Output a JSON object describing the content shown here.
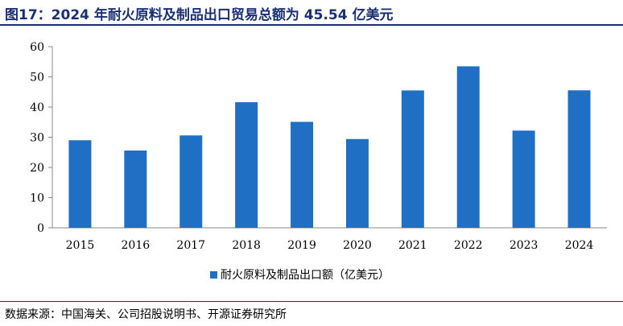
{
  "title": "图17：2024 年耐火原料及制品出口贸易总额为 45.54 亿美元",
  "source": "数据来源：中国海关、公司招股说明书、开源证券研究所",
  "colors": {
    "bar": "#1f6fc5",
    "title": "#1b2f73",
    "axis": "#888888"
  },
  "chart_data": {
    "type": "bar",
    "title": "",
    "xlabel": "",
    "ylabel": "",
    "categories": [
      "2015",
      "2016",
      "2017",
      "2018",
      "2019",
      "2020",
      "2021",
      "2022",
      "2023",
      "2024"
    ],
    "series": [
      {
        "name": "耐火原料及制品出口额（亿美元）",
        "values": [
          29.0,
          25.6,
          30.6,
          41.6,
          35.1,
          29.4,
          45.5,
          53.5,
          32.2,
          45.54
        ]
      }
    ],
    "ylim": [
      0,
      60
    ],
    "yticks": [
      0,
      10,
      20,
      30,
      40,
      50,
      60
    ],
    "grid": false,
    "legend_position": "bottom-center"
  }
}
